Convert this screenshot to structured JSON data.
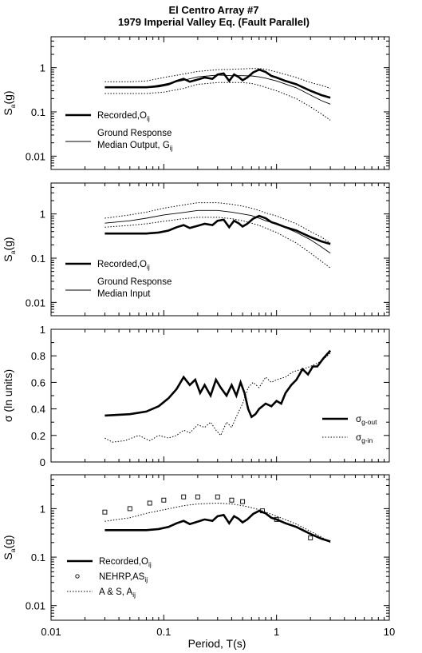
{
  "title": {
    "line1": "El Centro Array #7",
    "line2": "1979 Imperial Valley Eq. (Fault Parallel)"
  },
  "shared_x_axis": {
    "label": "Period, T(s)",
    "scale": "log",
    "range": [
      0.01,
      10
    ],
    "tick_labels": [
      "0.01",
      "0.1",
      "1",
      "10"
    ]
  },
  "chart_data": [
    {
      "type": "line",
      "panel": 1,
      "ylabel": {
        "main": "S",
        "sub": "a",
        "rest": "(g)"
      },
      "yscale": "log",
      "ylim": [
        0.005,
        5
      ],
      "ytick_labels": [
        "0.01",
        "0.1",
        "1"
      ],
      "legend": [
        {
          "label": "Recorded,O",
          "sub": "ij"
        },
        {
          "label": "Ground Response"
        },
        {
          "label": "Median Output, G",
          "sub": "ij"
        }
      ],
      "series": [
        {
          "name": "Recorded,O_ij",
          "style": "thick",
          "x": [
            0.03,
            0.05,
            0.07,
            0.09,
            0.11,
            0.13,
            0.15,
            0.17,
            0.2,
            0.23,
            0.27,
            0.3,
            0.34,
            0.38,
            0.42,
            0.46,
            0.5,
            0.55,
            0.62,
            0.7,
            0.8,
            0.9,
            1.0,
            1.2,
            1.5,
            2.0,
            2.5,
            3.0
          ],
          "y": [
            0.36,
            0.36,
            0.36,
            0.38,
            0.42,
            0.5,
            0.56,
            0.48,
            0.54,
            0.6,
            0.56,
            0.7,
            0.74,
            0.5,
            0.7,
            0.62,
            0.52,
            0.6,
            0.78,
            0.9,
            0.8,
            0.65,
            0.6,
            0.5,
            0.42,
            0.3,
            0.24,
            0.21
          ]
        },
        {
          "name": "Ground Response Median Output, G_ij",
          "style": "thin",
          "x": [
            0.03,
            0.05,
            0.07,
            0.1,
            0.15,
            0.2,
            0.3,
            0.4,
            0.5,
            0.6,
            0.7,
            0.8,
            1.0,
            1.5,
            2.0,
            2.5,
            3.0
          ],
          "y": [
            0.35,
            0.35,
            0.36,
            0.42,
            0.52,
            0.62,
            0.68,
            0.66,
            0.66,
            0.65,
            0.62,
            0.58,
            0.5,
            0.35,
            0.24,
            0.18,
            0.15
          ]
        },
        {
          "name": "upper bound",
          "style": "dotted",
          "x": [
            0.03,
            0.05,
            0.07,
            0.1,
            0.15,
            0.2,
            0.3,
            0.4,
            0.5,
            0.6,
            0.7,
            0.8,
            1.0,
            1.5,
            2.0,
            2.5,
            3.0
          ],
          "y": [
            0.48,
            0.48,
            0.5,
            0.6,
            0.72,
            0.82,
            0.9,
            0.92,
            0.94,
            0.96,
            0.96,
            0.92,
            0.8,
            0.6,
            0.46,
            0.4,
            0.34
          ]
        },
        {
          "name": "lower bound",
          "style": "dotted",
          "x": [
            0.03,
            0.05,
            0.07,
            0.1,
            0.15,
            0.2,
            0.3,
            0.4,
            0.5,
            0.6,
            0.7,
            0.8,
            1.0,
            1.5,
            2.0,
            2.5,
            3.0
          ],
          "y": [
            0.26,
            0.26,
            0.26,
            0.28,
            0.34,
            0.42,
            0.46,
            0.46,
            0.46,
            0.44,
            0.4,
            0.36,
            0.3,
            0.2,
            0.13,
            0.09,
            0.065
          ]
        }
      ]
    },
    {
      "type": "line",
      "panel": 2,
      "ylabel": {
        "main": "S",
        "sub": "a",
        "rest": "(g)"
      },
      "yscale": "log",
      "ylim": [
        0.005,
        5
      ],
      "ytick_labels": [
        "0.01",
        "0.1",
        "1"
      ],
      "legend": [
        {
          "label": "Recorded,O",
          "sub": "ij"
        },
        {
          "label": "Ground Response"
        },
        {
          "label": "Median Input"
        }
      ],
      "series": [
        {
          "name": "Recorded,O_ij",
          "style": "thick",
          "x": [
            0.03,
            0.05,
            0.07,
            0.09,
            0.11,
            0.13,
            0.15,
            0.17,
            0.2,
            0.23,
            0.27,
            0.3,
            0.34,
            0.38,
            0.42,
            0.46,
            0.5,
            0.55,
            0.62,
            0.7,
            0.8,
            0.9,
            1.0,
            1.2,
            1.5,
            2.0,
            2.5,
            3.0
          ],
          "y": [
            0.36,
            0.36,
            0.36,
            0.38,
            0.42,
            0.5,
            0.56,
            0.48,
            0.54,
            0.6,
            0.56,
            0.7,
            0.74,
            0.5,
            0.7,
            0.62,
            0.52,
            0.6,
            0.78,
            0.9,
            0.8,
            0.65,
            0.6,
            0.5,
            0.42,
            0.3,
            0.24,
            0.21
          ]
        },
        {
          "name": "Ground Response Median Input",
          "style": "thin",
          "x": [
            0.03,
            0.05,
            0.07,
            0.1,
            0.15,
            0.2,
            0.3,
            0.4,
            0.5,
            0.6,
            0.7,
            0.8,
            1.0,
            1.5,
            2.0,
            2.5,
            3.0
          ],
          "y": [
            0.62,
            0.7,
            0.8,
            0.95,
            1.08,
            1.2,
            1.2,
            1.1,
            1.0,
            0.92,
            0.8,
            0.7,
            0.6,
            0.38,
            0.26,
            0.18,
            0.13
          ]
        },
        {
          "name": "upper bound",
          "style": "dotted",
          "x": [
            0.03,
            0.05,
            0.07,
            0.1,
            0.15,
            0.2,
            0.3,
            0.4,
            0.5,
            0.6,
            0.7,
            0.8,
            1.0,
            1.5,
            2.0,
            2.5,
            3.0
          ],
          "y": [
            0.8,
            0.95,
            1.1,
            1.35,
            1.6,
            1.8,
            1.8,
            1.65,
            1.5,
            1.35,
            1.2,
            1.05,
            0.9,
            0.6,
            0.4,
            0.3,
            0.22
          ]
        },
        {
          "name": "lower bound",
          "style": "dotted",
          "x": [
            0.03,
            0.05,
            0.07,
            0.1,
            0.15,
            0.2,
            0.3,
            0.4,
            0.5,
            0.6,
            0.7,
            0.8,
            1.0,
            1.5,
            2.0,
            2.5,
            3.0
          ],
          "y": [
            0.5,
            0.55,
            0.6,
            0.68,
            0.78,
            0.84,
            0.84,
            0.78,
            0.7,
            0.62,
            0.55,
            0.48,
            0.38,
            0.22,
            0.13,
            0.085,
            0.06
          ]
        }
      ]
    },
    {
      "type": "line",
      "panel": 3,
      "ylabel": {
        "main": "σ (ln units)"
      },
      "yscale": "linear",
      "ylim": [
        0,
        1
      ],
      "ytick_labels": [
        "0",
        "0.2",
        "0.4",
        "0.6",
        "0.8",
        "1"
      ],
      "legend": [
        {
          "label": "σ",
          "sub": "g-out"
        },
        {
          "label": "σ",
          "sub": "g-in"
        }
      ],
      "series": [
        {
          "name": "σ_g-out",
          "style": "thick",
          "x": [
            0.03,
            0.05,
            0.07,
            0.09,
            0.11,
            0.13,
            0.15,
            0.17,
            0.19,
            0.21,
            0.23,
            0.26,
            0.29,
            0.32,
            0.36,
            0.4,
            0.44,
            0.48,
            0.52,
            0.56,
            0.6,
            0.65,
            0.7,
            0.8,
            0.9,
            1.0,
            1.1,
            1.2,
            1.35,
            1.5,
            1.7,
            1.9,
            2.1,
            2.3,
            2.6,
            3.0
          ],
          "y": [
            0.35,
            0.36,
            0.38,
            0.42,
            0.48,
            0.55,
            0.64,
            0.58,
            0.62,
            0.52,
            0.58,
            0.5,
            0.62,
            0.56,
            0.5,
            0.58,
            0.5,
            0.6,
            0.52,
            0.4,
            0.34,
            0.36,
            0.4,
            0.44,
            0.42,
            0.46,
            0.44,
            0.52,
            0.58,
            0.62,
            0.7,
            0.66,
            0.72,
            0.72,
            0.78,
            0.84
          ]
        },
        {
          "name": "σ_g-in",
          "style": "dotted",
          "x": [
            0.03,
            0.035,
            0.045,
            0.06,
            0.075,
            0.09,
            0.11,
            0.13,
            0.15,
            0.17,
            0.2,
            0.23,
            0.26,
            0.29,
            0.32,
            0.36,
            0.4,
            0.45,
            0.5,
            0.56,
            0.62,
            0.7,
            0.8,
            0.9,
            1.0,
            1.2,
            1.4,
            1.7,
            2.0,
            2.5,
            3.0
          ],
          "y": [
            0.18,
            0.15,
            0.16,
            0.2,
            0.16,
            0.2,
            0.18,
            0.2,
            0.24,
            0.22,
            0.28,
            0.26,
            0.3,
            0.24,
            0.2,
            0.3,
            0.26,
            0.36,
            0.44,
            0.56,
            0.6,
            0.56,
            0.64,
            0.6,
            0.62,
            0.64,
            0.68,
            0.7,
            0.72,
            0.76,
            0.82
          ]
        }
      ]
    },
    {
      "type": "line",
      "panel": 4,
      "ylabel": {
        "main": "S",
        "sub": "a",
        "rest": "(g)"
      },
      "yscale": "log",
      "ylim": [
        0.005,
        5
      ],
      "ytick_labels": [
        "0.01",
        "0.1",
        "1"
      ],
      "legend": [
        {
          "label": "Recorded,O",
          "sub": "ij"
        },
        {
          "label": "NEHRP,AS",
          "sub": "ij"
        },
        {
          "label": "A & S, A",
          "sub": "ij"
        }
      ],
      "series": [
        {
          "name": "Recorded,O_ij",
          "style": "thick",
          "x": [
            0.03,
            0.05,
            0.07,
            0.09,
            0.11,
            0.13,
            0.15,
            0.17,
            0.2,
            0.23,
            0.27,
            0.3,
            0.34,
            0.38,
            0.42,
            0.46,
            0.5,
            0.55,
            0.62,
            0.7,
            0.8,
            0.9,
            1.0,
            1.2,
            1.5,
            2.0,
            2.5,
            3.0
          ],
          "y": [
            0.36,
            0.36,
            0.36,
            0.38,
            0.42,
            0.5,
            0.56,
            0.48,
            0.54,
            0.6,
            0.56,
            0.7,
            0.74,
            0.5,
            0.7,
            0.62,
            0.52,
            0.6,
            0.78,
            0.9,
            0.8,
            0.65,
            0.6,
            0.5,
            0.42,
            0.3,
            0.24,
            0.21
          ]
        },
        {
          "name": "NEHRP,AS_ij",
          "style": "markers",
          "x": [
            0.03,
            0.05,
            0.075,
            0.1,
            0.15,
            0.2,
            0.3,
            0.4,
            0.5,
            0.75,
            1.0,
            2.0
          ],
          "y": [
            0.85,
            1.0,
            1.3,
            1.5,
            1.75,
            1.75,
            1.75,
            1.5,
            1.4,
            0.9,
            0.6,
            0.25
          ]
        },
        {
          "name": "A & S, A_ij",
          "style": "dotted",
          "x": [
            0.03,
            0.05,
            0.07,
            0.1,
            0.15,
            0.2,
            0.3,
            0.4,
            0.5,
            0.6,
            0.7,
            0.8,
            1.0,
            1.5,
            2.0,
            2.5,
            3.0
          ],
          "y": [
            0.55,
            0.65,
            0.8,
            0.95,
            1.15,
            1.25,
            1.3,
            1.25,
            1.15,
            1.05,
            0.95,
            0.85,
            0.7,
            0.48,
            0.34,
            0.26,
            0.2
          ]
        }
      ]
    }
  ]
}
